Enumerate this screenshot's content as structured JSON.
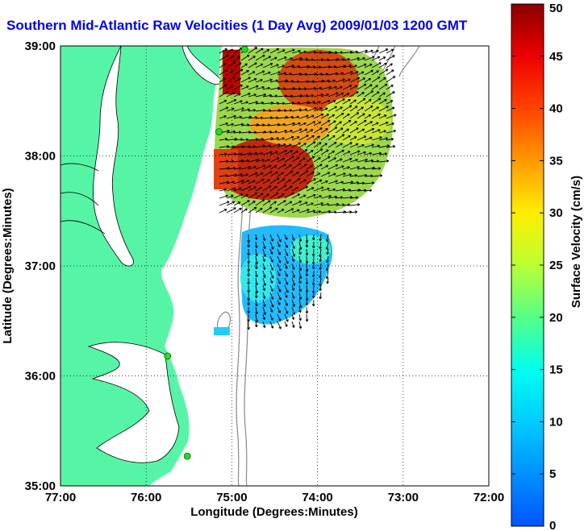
{
  "title": "Southern Mid-Atlantic Raw Velocities (1 Day Avg) 2009/01/03 1200 GMT",
  "xlabel": "Longitude (Degrees:Minutes)",
  "ylabel": "Latitude (Degrees:Minutes)",
  "colorbar": {
    "label": "Surface Velocity (cm/s)",
    "ticks": [
      "0",
      "5",
      "10",
      "15",
      "20",
      "25",
      "30",
      "35",
      "40",
      "45",
      "50"
    ],
    "range": [
      0,
      50
    ]
  },
  "x_ticks": [
    "77:00",
    "76:00",
    "75:00",
    "74:00",
    "73:00",
    "72:00"
  ],
  "y_ticks": [
    "35:00",
    "36:00",
    "37:00",
    "38:00",
    "39:00"
  ],
  "lon_range": [
    -77,
    -72
  ],
  "lat_range": [
    35,
    39
  ],
  "colors": {
    "land": "#55f5a5",
    "coast": "#000000",
    "bathymetry": "#888888",
    "title": "#0000ee",
    "grid": "#000000",
    "station": "#22dd22"
  },
  "stations": [
    {
      "lon": -74.85,
      "lat": 38.97
    },
    {
      "lon": -75.15,
      "lat": 38.22
    },
    {
      "lon": -75.75,
      "lat": 36.18
    },
    {
      "lon": -75.52,
      "lat": 35.27
    }
  ]
}
